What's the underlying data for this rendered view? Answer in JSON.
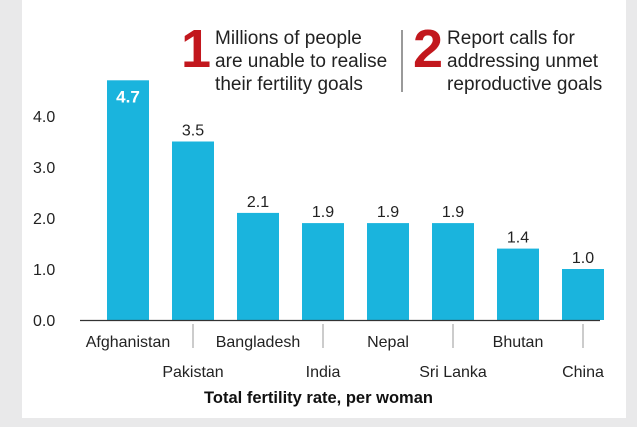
{
  "callouts": [
    {
      "number": "1",
      "lines": [
        "Millions of people",
        "are unable to realise",
        "their fertility goals"
      ]
    },
    {
      "number": "2",
      "lines": [
        "Report calls for",
        "addressing unmet",
        "reproductive goals"
      ]
    }
  ],
  "chart_data": {
    "type": "bar",
    "categories": [
      "Afghanistan",
      "Pakistan",
      "Bangladesh",
      "India",
      "Nepal",
      "Sri Lanka",
      "Bhutan",
      "China"
    ],
    "values": [
      4.7,
      3.5,
      2.1,
      1.9,
      1.9,
      1.9,
      1.4,
      1.0
    ],
    "value_labels": [
      "4.7",
      "3.5",
      "2.1",
      "1.9",
      "1.9",
      "1.9",
      "1.4",
      "1.0"
    ],
    "highlighted_index": 0,
    "xlabel": "Total fertility rate, per woman",
    "ylabel": "",
    "ylim": [
      0,
      4.7
    ],
    "y_ticks": [
      "0.0",
      "1.0",
      "2.0",
      "3.0",
      "4.0"
    ],
    "grid": false,
    "colors": {
      "bar": "#1ab4dd",
      "highlight_label_bg": "#1ab4dd",
      "highlight_label_text": "#ffffff",
      "axis": "#333333",
      "text": "#222222"
    }
  }
}
